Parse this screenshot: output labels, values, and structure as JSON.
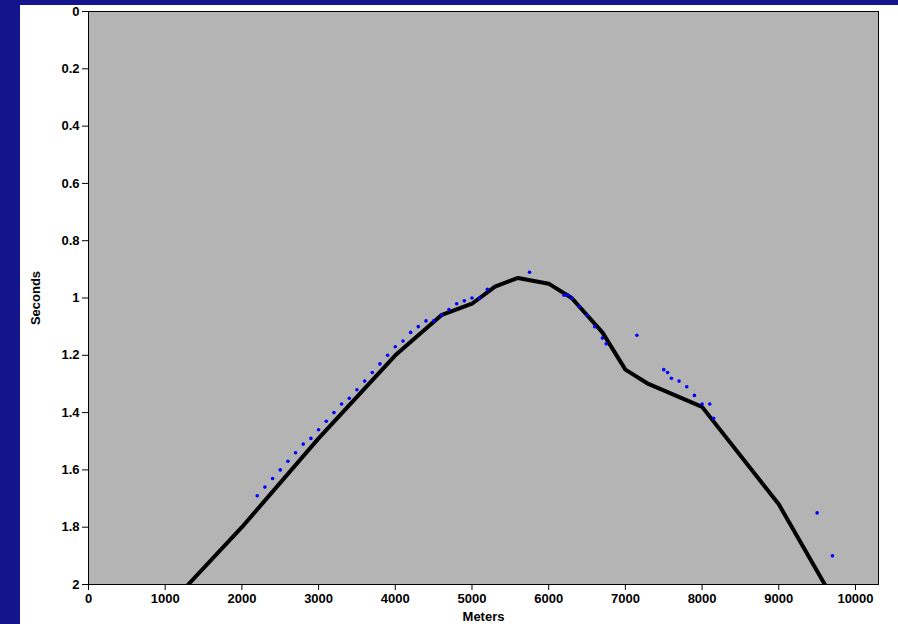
{
  "chart_data": {
    "type": "scatter",
    "x_label": "Meters",
    "y_label": "Seconds",
    "xlim": [
      0,
      10300
    ],
    "xticks": [
      0,
      1000,
      2000,
      3000,
      4000,
      5000,
      6000,
      7000,
      8000,
      9000,
      10000
    ],
    "ylim": [
      0,
      2
    ],
    "yticks": [
      0,
      0.2,
      0.4,
      0.6,
      0.8,
      1,
      1.2,
      1.4,
      1.6,
      1.8,
      2
    ],
    "grid": false,
    "series": [
      {
        "type": "line",
        "color": "#000000",
        "line_style": "solid",
        "x": [
          1300,
          2000,
          3000,
          4000,
          4600,
          5000,
          5300,
          5600,
          6000,
          6300,
          6700,
          7000,
          7300,
          8000,
          9000,
          9600
        ],
        "values": [
          2.0,
          1.8,
          1.49,
          1.2,
          1.06,
          1.02,
          0.96,
          0.93,
          0.95,
          1.0,
          1.12,
          1.25,
          1.3,
          1.38,
          1.72,
          2.0
        ]
      },
      {
        "type": "scatter",
        "color": "#0000ff",
        "marker": "dot",
        "x": [
          2200,
          2300,
          2400,
          2500,
          2600,
          2700,
          2800,
          2900,
          3000,
          3100,
          3200,
          3300,
          3400,
          3500,
          3600,
          3700,
          3800,
          3900,
          4000,
          4100,
          4200,
          4300,
          4400,
          4500,
          4600,
          4700,
          4800,
          4900,
          5000,
          5100,
          5200,
          5750,
          6200,
          6250,
          6300,
          6400,
          6500,
          6600,
          6700,
          6750,
          7150,
          7500,
          7550,
          7600,
          7700,
          7800,
          7900,
          8000,
          8100,
          8150,
          9500,
          9700
        ],
        "values": [
          1.69,
          1.66,
          1.63,
          1.6,
          1.57,
          1.54,
          1.51,
          1.49,
          1.46,
          1.43,
          1.4,
          1.37,
          1.35,
          1.32,
          1.29,
          1.26,
          1.23,
          1.2,
          1.17,
          1.15,
          1.12,
          1.1,
          1.08,
          1.08,
          1.06,
          1.04,
          1.02,
          1.01,
          1.0,
          1.0,
          0.97,
          0.91,
          0.99,
          0.99,
          1.0,
          1.03,
          1.06,
          1.1,
          1.14,
          1.16,
          1.13,
          1.25,
          1.26,
          1.28,
          1.29,
          1.31,
          1.34,
          1.37,
          1.37,
          1.42,
          1.75,
          1.9
        ]
      }
    ]
  }
}
